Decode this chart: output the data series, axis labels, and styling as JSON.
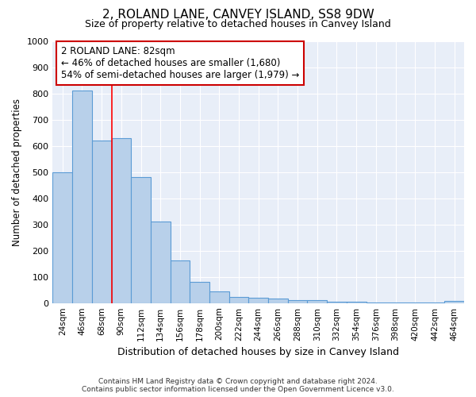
{
  "title": "2, ROLAND LANE, CANVEY ISLAND, SS8 9DW",
  "subtitle": "Size of property relative to detached houses in Canvey Island",
  "xlabel": "Distribution of detached houses by size in Canvey Island",
  "ylabel": "Number of detached properties",
  "footer_line1": "Contains HM Land Registry data © Crown copyright and database right 2024.",
  "footer_line2": "Contains public sector information licensed under the Open Government Licence v3.0.",
  "categories": [
    "24sqm",
    "46sqm",
    "68sqm",
    "90sqm",
    "112sqm",
    "134sqm",
    "156sqm",
    "178sqm",
    "200sqm",
    "222sqm",
    "244sqm",
    "266sqm",
    "288sqm",
    "310sqm",
    "332sqm",
    "354sqm",
    "376sqm",
    "398sqm",
    "420sqm",
    "442sqm",
    "464sqm"
  ],
  "values": [
    500,
    810,
    620,
    630,
    480,
    310,
    162,
    80,
    44,
    24,
    20,
    18,
    12,
    10,
    6,
    4,
    2,
    1,
    1,
    1,
    8
  ],
  "bar_color": "#b8d0ea",
  "bar_edge_color": "#5b9bd5",
  "background_color": "#e8eef8",
  "grid_color": "#ffffff",
  "annotation_text": "2 ROLAND LANE: 82sqm\n← 46% of detached houses are smaller (1,680)\n54% of semi-detached houses are larger (1,979) →",
  "annotation_box_facecolor": "#ffffff",
  "annotation_box_edgecolor": "#cc0000",
  "red_line_x": 2.5,
  "ylim": [
    0,
    1000
  ],
  "yticks": [
    0,
    100,
    200,
    300,
    400,
    500,
    600,
    700,
    800,
    900,
    1000
  ]
}
